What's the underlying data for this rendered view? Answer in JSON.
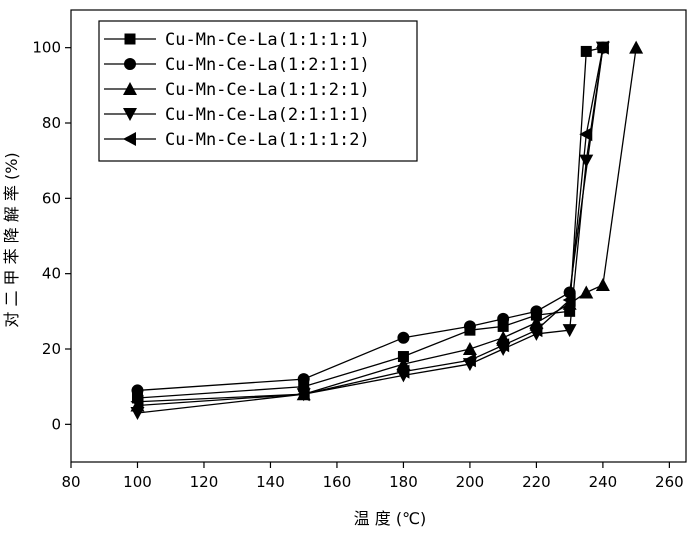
{
  "chart_data": {
    "type": "line",
    "xlabel": "温 度 (℃)",
    "ylabel": "对 二 甲 苯 降 解 率 (%)",
    "xlim": [
      80,
      265
    ],
    "ylim": [
      -10,
      110
    ],
    "xticks": [
      80,
      100,
      120,
      140,
      160,
      180,
      200,
      220,
      240,
      260
    ],
    "yticks": [
      0,
      20,
      40,
      60,
      80,
      100
    ],
    "grid": false,
    "legend_position": "top-left",
    "line_color": "#000000",
    "series": [
      {
        "name": "Cu-Mn-Ce-La(1:1:1:1)",
        "marker": "square",
        "x": [
          100,
          150,
          180,
          200,
          210,
          220,
          230,
          235,
          240
        ],
        "y": [
          7,
          10,
          18,
          25,
          26,
          29,
          30,
          99,
          100
        ]
      },
      {
        "name": "Cu-Mn-Ce-La(1:2:1:1)",
        "marker": "circle",
        "x": [
          100,
          150,
          180,
          200,
          210,
          220,
          230,
          240
        ],
        "y": [
          9,
          12,
          23,
          26,
          28,
          30,
          35,
          100
        ]
      },
      {
        "name": "Cu-Mn-Ce-La(1:1:2:1)",
        "marker": "triangle-up",
        "x": [
          100,
          150,
          180,
          200,
          210,
          220,
          230,
          235,
          240,
          250
        ],
        "y": [
          5,
          8,
          16,
          20,
          23,
          27,
          32,
          35,
          37,
          100
        ]
      },
      {
        "name": "Cu-Mn-Ce-La(2:1:1:1)",
        "marker": "triangle-down",
        "x": [
          100,
          150,
          180,
          200,
          210,
          220,
          230,
          235,
          240
        ],
        "y": [
          3,
          8,
          13,
          16,
          20,
          24,
          25,
          70,
          100
        ]
      },
      {
        "name": "Cu-Mn-Ce-La(1:1:1:2)",
        "marker": "triangle-left",
        "x": [
          100,
          150,
          180,
          200,
          210,
          220,
          230,
          235,
          240
        ],
        "y": [
          6,
          8,
          14,
          17,
          21,
          25,
          33,
          77,
          100
        ]
      }
    ]
  }
}
